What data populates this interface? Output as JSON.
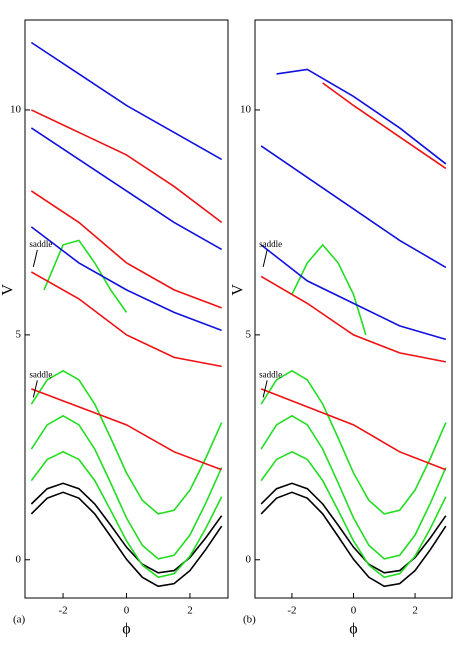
{
  "chart_data": [
    {
      "type": "line",
      "panel_label": "(a)",
      "x_label": "ϕ",
      "y_label": "V",
      "annotations": [
        "saddle",
        "saddle"
      ],
      "xlim": [
        -3.2,
        3.2
      ],
      "ylim": [
        -0.85,
        12
      ],
      "xticks": [
        -2,
        0,
        2
      ],
      "yticks": [
        0,
        5,
        10
      ],
      "series": [
        {
          "color": "#000000",
          "x": [
            -3,
            -2.5,
            -2,
            -1.5,
            -1,
            -0.5,
            0,
            0.5,
            1,
            1.5,
            2,
            2.5,
            3
          ],
          "values": [
            1.02,
            1.37,
            1.5,
            1.37,
            1.02,
            0.52,
            0.01,
            -0.39,
            -0.59,
            -0.53,
            -0.24,
            0.23,
            0.75
          ]
        },
        {
          "color": "#000000",
          "x": [
            -3,
            -2.5,
            -2,
            -1.5,
            -1,
            -0.5,
            0,
            0.5,
            1,
            1.5,
            2,
            2.5,
            3
          ],
          "values": [
            1.24,
            1.58,
            1.7,
            1.58,
            1.24,
            0.77,
            0.28,
            -0.1,
            -0.29,
            -0.24,
            0.05,
            0.49,
            0.98
          ]
        },
        {
          "color": "#22dd22",
          "x": [
            -3,
            -2.5,
            -2,
            -1.5,
            -1,
            -0.5,
            0,
            0.5,
            1,
            1.5,
            2,
            2.5,
            3
          ],
          "values": [
            1.76,
            2.23,
            2.4,
            2.23,
            1.76,
            1.1,
            0.42,
            -0.12,
            -0.39,
            -0.31,
            0.08,
            0.7,
            1.4
          ]
        },
        {
          "color": "#22dd22",
          "x": [
            -3,
            -2.5,
            -2,
            -1.5,
            -1,
            -0.5,
            0,
            0.5,
            1,
            1.5,
            2,
            2.5,
            3
          ],
          "values": [
            2.46,
            3.0,
            3.2,
            3.0,
            2.46,
            1.71,
            0.93,
            0.32,
            0.02,
            0.1,
            0.55,
            1.26,
            2.05
          ]
        },
        {
          "color": "#22dd22",
          "x": [
            -3,
            -2.5,
            -2,
            -1.5,
            -1,
            -0.5,
            0,
            0.5,
            1,
            1.5,
            2,
            2.5,
            3
          ],
          "values": [
            3.46,
            4.0,
            4.2,
            4.0,
            3.46,
            2.71,
            1.93,
            1.32,
            1.02,
            1.1,
            1.55,
            2.26,
            3.05
          ]
        },
        {
          "color": "#22dd22",
          "x": [
            -2.6,
            -2,
            -1.5,
            -1,
            -0.5,
            0
          ],
          "values": [
            6.0,
            7.0,
            7.1,
            6.6,
            6.0,
            5.5
          ]
        },
        {
          "color": "#ee1111",
          "x": [
            -3,
            -1.5,
            0,
            1.5,
            3
          ],
          "values": [
            3.8,
            3.4,
            3.0,
            2.4,
            2.0
          ]
        },
        {
          "color": "#ee1111",
          "x": [
            -3,
            -1.5,
            0,
            1.5,
            3
          ],
          "values": [
            6.4,
            5.8,
            5.0,
            4.5,
            4.3
          ]
        },
        {
          "color": "#ee1111",
          "x": [
            -3,
            -1.5,
            0,
            1.5,
            3
          ],
          "values": [
            8.2,
            7.5,
            6.6,
            6.0,
            5.6
          ]
        },
        {
          "color": "#ee1111",
          "x": [
            -3,
            -1.5,
            0,
            1.5,
            3
          ],
          "values": [
            10.0,
            9.5,
            9.0,
            8.3,
            7.5
          ]
        },
        {
          "color": "#1111dd",
          "x": [
            -3,
            -1.5,
            0,
            1.5,
            3
          ],
          "values": [
            7.4,
            6.6,
            6.0,
            5.5,
            5.1
          ]
        },
        {
          "color": "#1111dd",
          "x": [
            -3,
            -1.5,
            0,
            1.5,
            3
          ],
          "values": [
            9.6,
            8.9,
            8.2,
            7.5,
            6.9
          ]
        },
        {
          "color": "#1111dd",
          "x": [
            -3,
            -1.5,
            0,
            1.5,
            3
          ],
          "values": [
            11.5,
            10.8,
            10.1,
            9.5,
            8.9
          ]
        }
      ]
    },
    {
      "type": "line",
      "panel_label": "(b)",
      "x_label": "ϕ",
      "y_label": "V",
      "annotations": [
        "saddle",
        "saddle"
      ],
      "xlim": [
        -3.2,
        3.2
      ],
      "ylim": [
        -0.85,
        12
      ],
      "xticks": [
        -2,
        0,
        2
      ],
      "yticks": [
        0,
        5,
        10
      ],
      "series": [
        {
          "color": "#000000",
          "x": [
            -3,
            -2.5,
            -2,
            -1.5,
            -1,
            -0.5,
            0,
            0.5,
            1,
            1.5,
            2,
            2.5,
            3
          ],
          "values": [
            1.02,
            1.37,
            1.5,
            1.37,
            1.02,
            0.52,
            0.01,
            -0.39,
            -0.59,
            -0.53,
            -0.24,
            0.23,
            0.75
          ]
        },
        {
          "color": "#000000",
          "x": [
            -3,
            -2.5,
            -2,
            -1.5,
            -1,
            -0.5,
            0,
            0.5,
            1,
            1.5,
            2,
            2.5,
            3
          ],
          "values": [
            1.24,
            1.58,
            1.7,
            1.58,
            1.24,
            0.77,
            0.28,
            -0.1,
            -0.29,
            -0.24,
            0.05,
            0.49,
            0.98
          ]
        },
        {
          "color": "#22dd22",
          "x": [
            -3,
            -2.5,
            -2,
            -1.5,
            -1,
            -0.5,
            0,
            0.5,
            1,
            1.5,
            2,
            2.5,
            3
          ],
          "values": [
            1.76,
            2.23,
            2.4,
            2.23,
            1.76,
            1.1,
            0.42,
            -0.12,
            -0.39,
            -0.31,
            0.08,
            0.7,
            1.4
          ]
        },
        {
          "color": "#22dd22",
          "x": [
            -3,
            -2.5,
            -2,
            -1.5,
            -1,
            -0.5,
            0,
            0.5,
            1,
            1.5,
            2,
            2.5,
            3
          ],
          "values": [
            2.46,
            3.0,
            3.2,
            3.0,
            2.46,
            1.71,
            0.93,
            0.32,
            0.02,
            0.1,
            0.55,
            1.26,
            2.05
          ]
        },
        {
          "color": "#22dd22",
          "x": [
            -3,
            -2.5,
            -2,
            -1.5,
            -1,
            -0.5,
            0,
            0.5,
            1,
            1.5,
            2,
            2.5,
            3
          ],
          "values": [
            3.46,
            4.0,
            4.2,
            4.0,
            3.46,
            2.71,
            1.93,
            1.32,
            1.02,
            1.1,
            1.55,
            2.26,
            3.05
          ]
        },
        {
          "color": "#22dd22",
          "x": [
            -2.0,
            -1.5,
            -1,
            -0.5,
            0,
            0.4
          ],
          "values": [
            5.9,
            6.6,
            7.0,
            6.6,
            5.9,
            5.0
          ]
        },
        {
          "color": "#ee1111",
          "x": [
            -3,
            -1.5,
            0,
            1.5,
            3
          ],
          "values": [
            3.8,
            3.4,
            3.0,
            2.4,
            2.0
          ]
        },
        {
          "color": "#ee1111",
          "x": [
            -3,
            -1.5,
            0,
            1.5,
            3
          ],
          "values": [
            6.3,
            5.7,
            5.0,
            4.6,
            4.4
          ]
        },
        {
          "color": "#ee1111",
          "x": [
            -1,
            0,
            1.5,
            3
          ],
          "values": [
            10.6,
            10.1,
            9.4,
            8.7
          ]
        },
        {
          "color": "#1111dd",
          "x": [
            -3,
            -1.5,
            0,
            1.5,
            3
          ],
          "values": [
            7.0,
            6.2,
            5.7,
            5.2,
            4.9
          ]
        },
        {
          "color": "#1111dd",
          "x": [
            -3,
            -1.5,
            0,
            1.5,
            3
          ],
          "values": [
            9.2,
            8.5,
            7.8,
            7.1,
            6.5
          ]
        },
        {
          "color": "#1111dd",
          "x": [
            -2.5,
            -1.5,
            0,
            1.5,
            3
          ],
          "values": [
            10.8,
            10.9,
            10.3,
            9.6,
            8.8
          ]
        }
      ]
    }
  ]
}
